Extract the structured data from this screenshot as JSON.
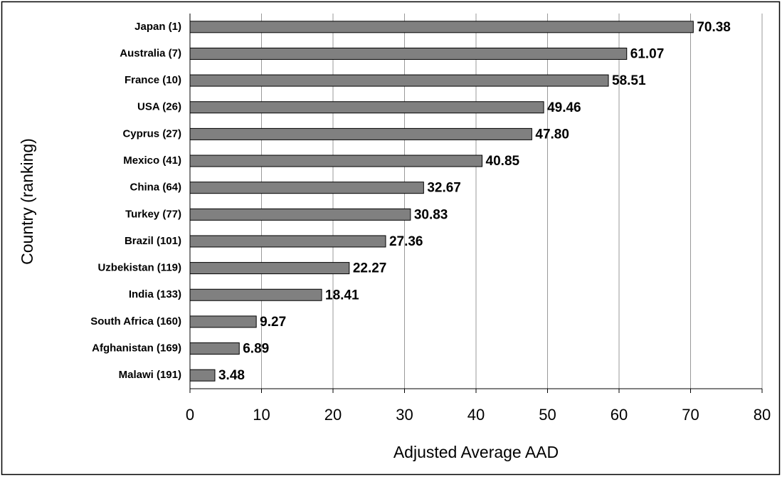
{
  "chart_data": {
    "type": "hbar",
    "xlabel": "Adjusted Average AAD",
    "ylabel": "Country (ranking)",
    "categories": [
      "Japan (1)",
      "Australia (7)",
      "France (10)",
      "USA (26)",
      "Cyprus (27)",
      "Mexico (41)",
      "China (64)",
      "Turkey (77)",
      "Brazil (101)",
      "Uzbekistan (119)",
      "India (133)",
      "South Africa (160)",
      "Afghanistan (169)",
      "Malawi (191)"
    ],
    "values": [
      70.38,
      61.07,
      58.51,
      49.46,
      47.8,
      40.85,
      32.67,
      30.83,
      27.36,
      22.27,
      18.41,
      9.27,
      6.89,
      3.48
    ],
    "value_labels": [
      "70.38",
      "61.07",
      "58.51",
      "49.46",
      "47.80",
      "40.85",
      "32.67",
      "30.83",
      "27.36",
      "22.27",
      "18.41",
      "9.27",
      "6.89",
      "3.48"
    ],
    "color": "#808080",
    "xlim": [
      0,
      80
    ],
    "xticks": [
      0,
      10,
      20,
      30,
      40,
      50,
      60,
      70,
      80
    ],
    "grid": true
  }
}
